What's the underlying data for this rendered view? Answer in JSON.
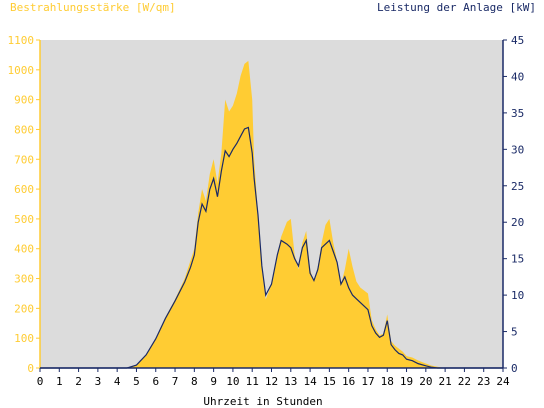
{
  "chart_data": {
    "type": "area",
    "left_axis_label": "Bestrahlungsstärke [W/qm]",
    "right_axis_label": "Leistung der Anlage [kW]",
    "xlabel": "Uhrzeit in Stunden",
    "xlim": [
      0,
      24
    ],
    "x_ticks": [
      "0",
      "1",
      "2",
      "3",
      "4",
      "5",
      "6",
      "7",
      "8",
      "9",
      "10",
      "11",
      "12",
      "13",
      "14",
      "15",
      "16",
      "17",
      "18",
      "19",
      "20",
      "21",
      "22",
      "23",
      "24"
    ],
    "y_left_lim": [
      0,
      1100
    ],
    "y_left_ticks": [
      "0",
      "100",
      "200",
      "300",
      "400",
      "500",
      "600",
      "700",
      "800",
      "900",
      "1000",
      "1100"
    ],
    "y_right_lim": [
      0,
      45
    ],
    "y_right_ticks": [
      "0",
      "5",
      "10",
      "15",
      "20",
      "25",
      "30",
      "35",
      "40",
      "45"
    ],
    "grid": false,
    "colors": {
      "plot_bg": "#dcdcdc",
      "irradiance": "#ffcc33",
      "power": "#1a2a66",
      "left_axis": "#ffcc33",
      "right_axis": "#1a2a66"
    },
    "series": [
      {
        "name": "Bestrahlungsstärke [W/qm]",
        "axis": "left",
        "style": "area",
        "x": [
          0,
          4.5,
          5.0,
          5.5,
          6.0,
          6.5,
          7.0,
          7.5,
          7.8,
          8.0,
          8.2,
          8.4,
          8.6,
          8.8,
          9.0,
          9.2,
          9.4,
          9.6,
          9.8,
          10.0,
          10.2,
          10.4,
          10.6,
          10.8,
          11.0,
          11.1,
          11.3,
          11.5,
          11.7,
          12.0,
          12.3,
          12.5,
          12.8,
          13.0,
          13.2,
          13.4,
          13.6,
          13.8,
          14.0,
          14.2,
          14.4,
          14.6,
          14.8,
          15.0,
          15.2,
          15.4,
          15.6,
          15.8,
          16.0,
          16.2,
          16.4,
          16.6,
          16.8,
          17.0,
          17.2,
          17.4,
          17.6,
          17.8,
          18.0,
          18.2,
          18.4,
          18.6,
          18.8,
          19.0,
          19.3,
          19.6,
          20.0,
          20.3,
          20.6,
          21.0,
          24
        ],
        "y": [
          0,
          0,
          10,
          45,
          100,
          170,
          230,
          300,
          360,
          400,
          520,
          600,
          560,
          650,
          700,
          620,
          720,
          900,
          860,
          880,
          920,
          980,
          1020,
          1030,
          900,
          700,
          520,
          330,
          230,
          280,
          380,
          440,
          490,
          500,
          380,
          330,
          420,
          460,
          330,
          290,
          340,
          420,
          480,
          500,
          420,
          360,
          280,
          330,
          400,
          340,
          290,
          270,
          260,
          250,
          160,
          130,
          110,
          115,
          180,
          90,
          75,
          65,
          55,
          40,
          35,
          25,
          15,
          8,
          4,
          0,
          0
        ]
      },
      {
        "name": "Leistung der Anlage [kW]",
        "axis": "right",
        "style": "line",
        "x": [
          0,
          4.5,
          5.0,
          5.5,
          6.0,
          6.5,
          7.0,
          7.5,
          7.8,
          8.0,
          8.2,
          8.4,
          8.6,
          8.8,
          9.0,
          9.2,
          9.4,
          9.6,
          9.8,
          10.0,
          10.2,
          10.4,
          10.6,
          10.8,
          11.0,
          11.1,
          11.3,
          11.5,
          11.7,
          12.0,
          12.3,
          12.5,
          12.8,
          13.0,
          13.2,
          13.4,
          13.6,
          13.8,
          14.0,
          14.2,
          14.4,
          14.6,
          14.8,
          15.0,
          15.2,
          15.4,
          15.6,
          15.8,
          16.0,
          16.2,
          16.4,
          16.6,
          16.8,
          17.0,
          17.2,
          17.4,
          17.6,
          17.8,
          18.0,
          18.2,
          18.4,
          18.6,
          18.8,
          19.0,
          19.3,
          19.6,
          20.0,
          20.3,
          20.6,
          21.0,
          24
        ],
        "y": [
          0,
          0,
          0.4,
          1.8,
          4.0,
          6.8,
          9.2,
          11.8,
          13.8,
          15.5,
          20.0,
          22.5,
          21.5,
          24.5,
          26.0,
          23.5,
          27.0,
          29.8,
          29.0,
          30.0,
          30.8,
          31.8,
          32.8,
          33.0,
          29.5,
          26.0,
          21.0,
          14.0,
          10.0,
          11.5,
          15.5,
          17.5,
          17.0,
          16.5,
          15.0,
          14.0,
          16.5,
          17.5,
          13.0,
          12.0,
          13.5,
          16.5,
          17.0,
          17.5,
          16.0,
          14.5,
          11.5,
          12.5,
          11.0,
          10.0,
          9.5,
          9.0,
          8.5,
          8.0,
          5.8,
          4.8,
          4.2,
          4.5,
          6.5,
          3.2,
          2.5,
          2.0,
          1.8,
          1.2,
          1.0,
          0.6,
          0.3,
          0.1,
          0,
          0,
          0
        ]
      }
    ]
  }
}
